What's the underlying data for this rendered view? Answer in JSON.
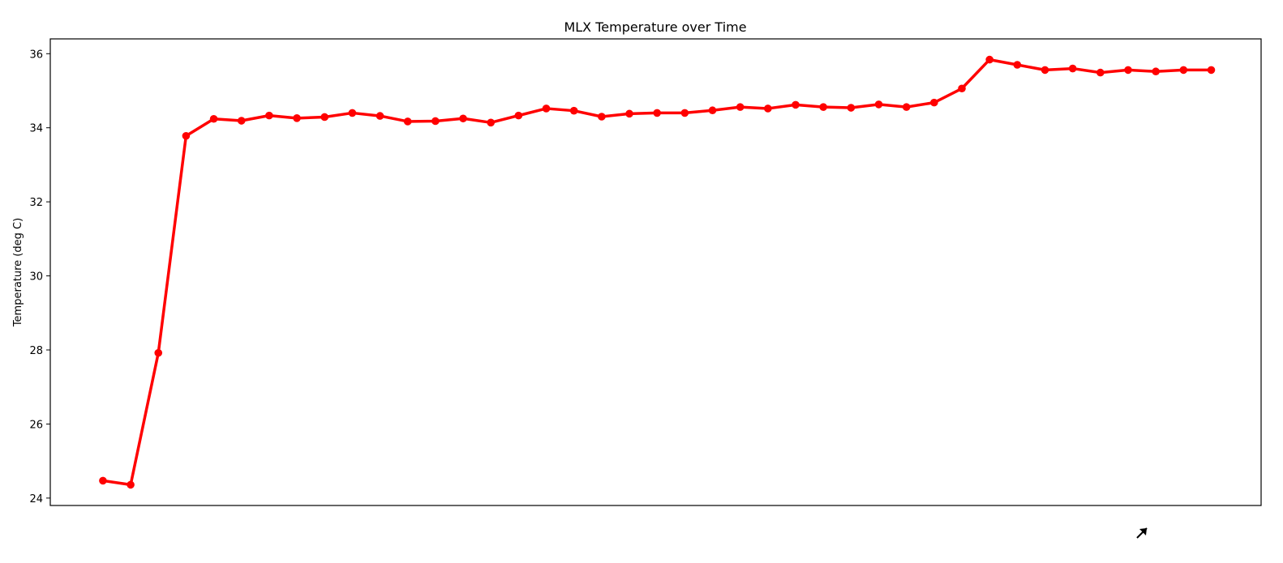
{
  "chart_data": {
    "type": "line",
    "title": "MLX Temperature over Time",
    "xlabel": "",
    "ylabel": "Temperature (deg C)",
    "ylim": [
      23.8,
      36.4
    ],
    "yticks": [
      24,
      26,
      28,
      30,
      32,
      34,
      36
    ],
    "xlim": [
      -1.9,
      41.8
    ],
    "x_tick_labels_visible": false,
    "grid": false,
    "series": [
      {
        "name": "MLX Temperature",
        "color": "#ff0000",
        "marker": "circle",
        "x": [
          0,
          1,
          2,
          3,
          4,
          5,
          6,
          7,
          8,
          9,
          10,
          11,
          12,
          13,
          14,
          15,
          16,
          17,
          18,
          19,
          20,
          21,
          22,
          23,
          24,
          25,
          26,
          27,
          28,
          29,
          30,
          31,
          32,
          33,
          34,
          35,
          36,
          37,
          38,
          39,
          40
        ],
        "values": [
          24.47,
          24.36,
          27.92,
          33.78,
          34.24,
          34.19,
          34.33,
          34.26,
          34.29,
          34.4,
          34.32,
          34.17,
          34.18,
          34.25,
          34.14,
          34.33,
          34.52,
          34.46,
          34.3,
          34.38,
          34.4,
          34.4,
          34.47,
          34.56,
          34.52,
          34.62,
          34.56,
          34.54,
          34.63,
          34.56,
          34.68,
          35.06,
          35.84,
          35.7,
          35.56,
          35.6,
          35.49,
          35.56,
          35.52,
          35.56,
          35.56
        ]
      }
    ]
  },
  "cursor_icon": "mouse-pointer-icon"
}
